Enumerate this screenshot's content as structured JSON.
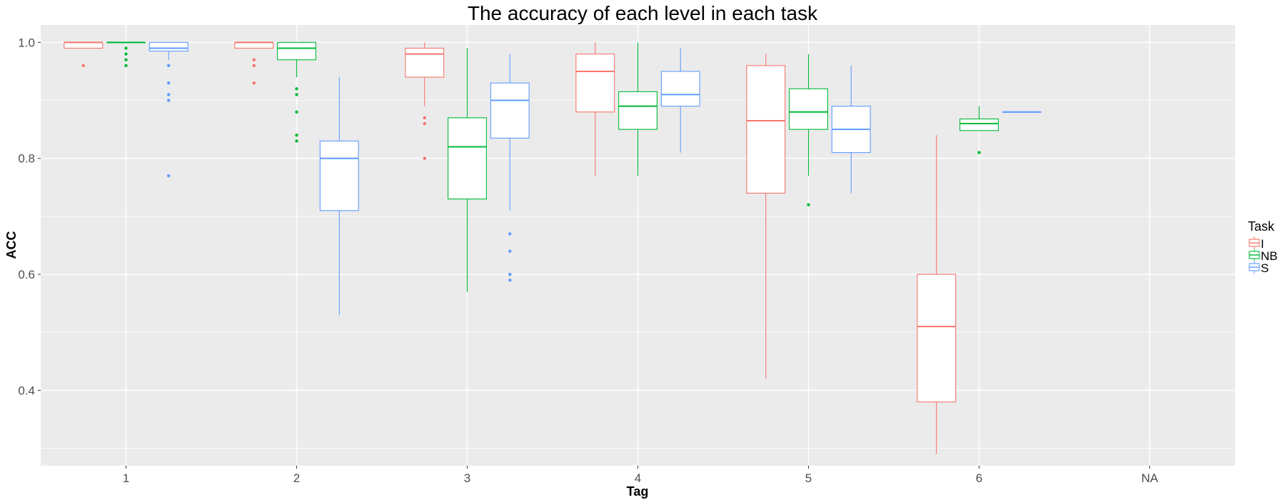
{
  "chart_data": {
    "type": "boxplot",
    "title": "The accuracy of each level in each task",
    "xlabel": "Tag",
    "ylabel": "ACC",
    "categories": [
      "1",
      "2",
      "3",
      "4",
      "5",
      "6",
      "NA"
    ],
    "ylim": [
      0.27,
      1.03
    ],
    "yticks": [
      0.4,
      0.6,
      0.8,
      1.0
    ],
    "ytick_labels": [
      "0.4",
      "0.6",
      "0.8",
      "1.0"
    ],
    "grid": true,
    "legend": {
      "title": "Task",
      "position": "right"
    },
    "series": [
      {
        "name": "I",
        "color": "#F8766D",
        "boxes": [
          {
            "category": "1",
            "min": 0.99,
            "q1": 0.99,
            "median": 1.0,
            "q3": 1.0,
            "max": 1.0,
            "outliers": [
              0.96
            ]
          },
          {
            "category": "2",
            "min": 0.99,
            "q1": 0.99,
            "median": 1.0,
            "q3": 1.0,
            "max": 1.0,
            "outliers": [
              0.97,
              0.96,
              0.93
            ]
          },
          {
            "category": "3",
            "min": 0.89,
            "q1": 0.94,
            "median": 0.98,
            "q3": 0.99,
            "max": 1.0,
            "outliers": [
              0.87,
              0.86,
              0.8
            ]
          },
          {
            "category": "4",
            "min": 0.77,
            "q1": 0.88,
            "median": 0.95,
            "q3": 0.98,
            "max": 1.0,
            "outliers": []
          },
          {
            "category": "5",
            "min": 0.42,
            "q1": 0.74,
            "median": 0.865,
            "q3": 0.96,
            "max": 0.98,
            "outliers": []
          },
          {
            "category": "6",
            "min": 0.29,
            "q1": 0.38,
            "median": 0.51,
            "q3": 0.6,
            "max": 0.84,
            "outliers": []
          }
        ]
      },
      {
        "name": "NB",
        "color": "#00BA38",
        "boxes": [
          {
            "category": "1",
            "min": 1.0,
            "q1": 1.0,
            "median": 1.0,
            "q3": 1.0,
            "max": 1.0,
            "outliers": [
              0.99,
              0.98,
              0.97,
              0.96
            ]
          },
          {
            "category": "2",
            "min": 0.94,
            "q1": 0.97,
            "median": 0.99,
            "q3": 1.0,
            "max": 1.0,
            "outliers": [
              0.92,
              0.91,
              0.88,
              0.84,
              0.83
            ]
          },
          {
            "category": "3",
            "min": 0.57,
            "q1": 0.73,
            "median": 0.82,
            "q3": 0.87,
            "max": 0.99,
            "outliers": []
          },
          {
            "category": "4",
            "min": 0.77,
            "q1": 0.85,
            "median": 0.89,
            "q3": 0.915,
            "max": 1.0,
            "outliers": []
          },
          {
            "category": "5",
            "min": 0.77,
            "q1": 0.85,
            "median": 0.88,
            "q3": 0.92,
            "max": 0.98,
            "outliers": [
              0.72
            ]
          },
          {
            "category": "6",
            "min": 0.848,
            "q1": 0.848,
            "median": 0.86,
            "q3": 0.868,
            "max": 0.89,
            "outliers": [
              0.81
            ]
          }
        ]
      },
      {
        "name": "S",
        "color": "#619CFF",
        "boxes": [
          {
            "category": "1",
            "min": 0.97,
            "q1": 0.985,
            "median": 0.99,
            "q3": 1.0,
            "max": 1.0,
            "outliers": [
              0.96,
              0.93,
              0.91,
              0.9,
              0.77
            ]
          },
          {
            "category": "2",
            "min": 0.53,
            "q1": 0.71,
            "median": 0.8,
            "q3": 0.83,
            "max": 0.94,
            "outliers": []
          },
          {
            "category": "3",
            "min": 0.71,
            "q1": 0.835,
            "median": 0.9,
            "q3": 0.93,
            "max": 0.98,
            "outliers": [
              0.67,
              0.64,
              0.6,
              0.59
            ]
          },
          {
            "category": "4",
            "min": 0.81,
            "q1": 0.89,
            "median": 0.91,
            "q3": 0.95,
            "max": 0.99,
            "outliers": []
          },
          {
            "category": "5",
            "min": 0.74,
            "q1": 0.81,
            "median": 0.85,
            "q3": 0.89,
            "max": 0.96,
            "outliers": []
          },
          {
            "category": "6",
            "min": 0.88,
            "q1": 0.88,
            "median": 0.88,
            "q3": 0.88,
            "max": 0.88,
            "outliers": []
          }
        ]
      }
    ]
  }
}
